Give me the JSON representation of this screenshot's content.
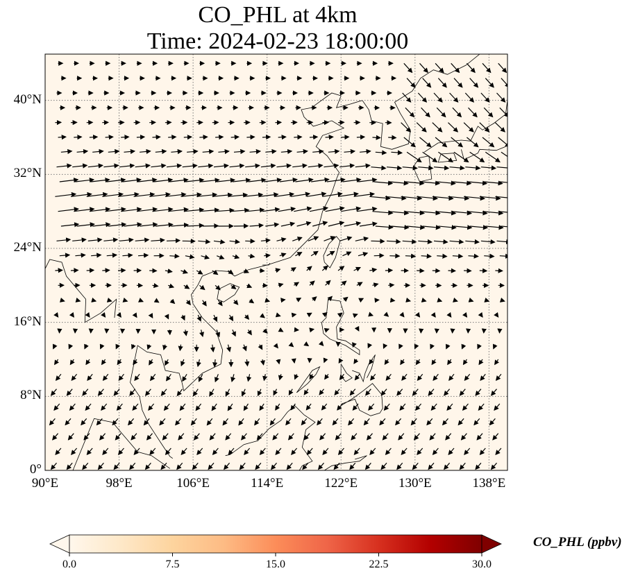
{
  "title_line1": "CO_PHL at 4km",
  "title_line2": "Time: 2024-02-23 18:00:00",
  "map": {
    "lon_range": [
      90,
      140
    ],
    "lat_range": [
      0,
      45
    ],
    "lat_ticks": [
      {
        "value": 40,
        "label": "40°N"
      },
      {
        "value": 32,
        "label": "32°N"
      },
      {
        "value": 24,
        "label": "24°N"
      },
      {
        "value": 16,
        "label": "16°N"
      },
      {
        "value": 8,
        "label": "8°N"
      },
      {
        "value": 0,
        "label": "0°"
      }
    ],
    "lon_ticks": [
      {
        "value": 90,
        "label": "90°E"
      },
      {
        "value": 98,
        "label": "98°E"
      },
      {
        "value": 106,
        "label": "106°E"
      },
      {
        "value": 114,
        "label": "114°E"
      },
      {
        "value": 122,
        "label": "122°E"
      },
      {
        "value": 130,
        "label": "130°E"
      },
      {
        "value": 138,
        "label": "138°E"
      }
    ],
    "gridlines": true,
    "background_color": "#fff6ea",
    "wind_field": "quiver"
  },
  "colorbar": {
    "label": "CO_PHL (ppbv)",
    "min": 0,
    "max": 30,
    "extend": "both",
    "colormap": "OrRd",
    "colors": [
      "#fff7ec",
      "#fee8c8",
      "#fdd49e",
      "#fdbb84",
      "#fc8d59",
      "#ef6548",
      "#d7301f",
      "#b30000",
      "#7f0000"
    ],
    "ticks": [
      {
        "value": 0,
        "label": "0.0"
      },
      {
        "value": 7.5,
        "label": "7.5"
      },
      {
        "value": 15,
        "label": "15.0"
      },
      {
        "value": 22.5,
        "label": "22.5"
      },
      {
        "value": 30,
        "label": "30.0"
      }
    ]
  }
}
